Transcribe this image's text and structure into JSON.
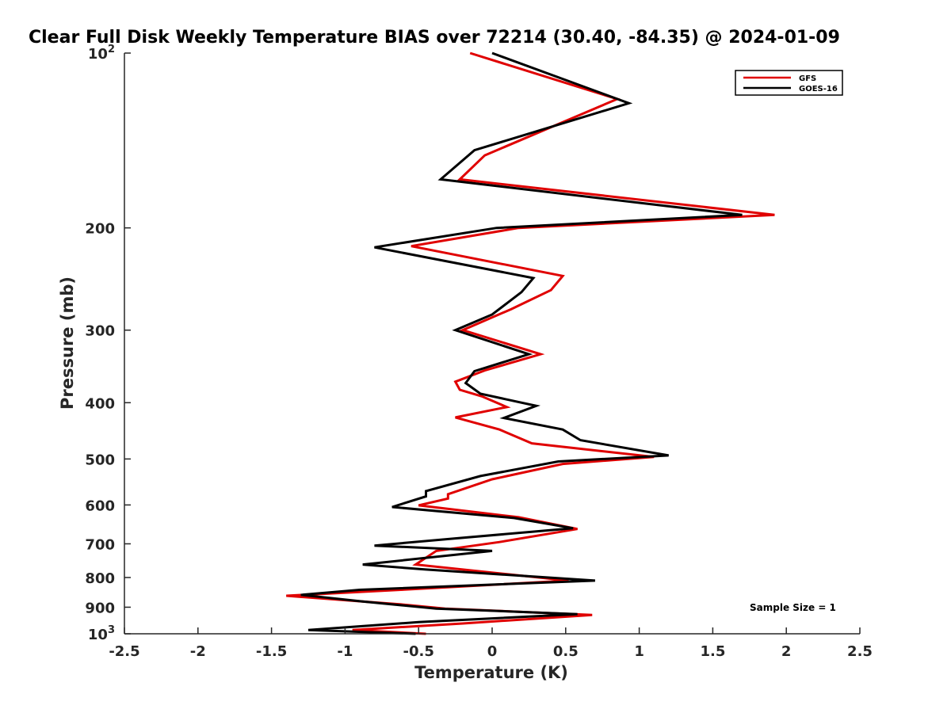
{
  "chart_data": {
    "type": "line",
    "title": "Clear Full Disk Weekly Temperature BIAS over 72214 (30.40, -84.35) @ 2024-01-09",
    "xlabel": "Temperature (K)",
    "ylabel": "Pressure (mb)",
    "xlim": [
      -2.5,
      2.5
    ],
    "ylim": [
      100,
      1000
    ],
    "y_scale": "log",
    "y_reversed": true,
    "x_ticks": [
      "-2.5",
      "-2",
      "-1.5",
      "-1",
      "-0.5",
      "0",
      "0.5",
      "1",
      "1.5",
      "2",
      "2.5"
    ],
    "x_tick_values": [
      -2.5,
      -2,
      -1.5,
      -1,
      -0.5,
      0,
      0.5,
      1,
      1.5,
      2,
      2.5
    ],
    "y_ticks": [
      {
        "value": 100,
        "base": "10",
        "exp": "2"
      },
      {
        "value": 200,
        "label": "200"
      },
      {
        "value": 300,
        "label": "300"
      },
      {
        "value": 400,
        "label": "400"
      },
      {
        "value": 500,
        "label": "500"
      },
      {
        "value": 600,
        "label": "600"
      },
      {
        "value": 700,
        "label": "700"
      },
      {
        "value": 800,
        "label": "800"
      },
      {
        "value": 900,
        "label": "900"
      },
      {
        "value": 1000,
        "base": "10",
        "exp": "3"
      }
    ],
    "legend_position": "top-right",
    "annotation": "Sample Size = 1",
    "grid": false,
    "series": [
      {
        "name": "GFS",
        "color": "#e00000",
        "points": [
          [
            -0.15,
            100
          ],
          [
            0.85,
            120
          ],
          [
            -0.05,
            150
          ],
          [
            -0.22,
            165
          ],
          [
            1.92,
            190
          ],
          [
            0.18,
            200
          ],
          [
            -0.55,
            215
          ],
          [
            0.48,
            242
          ],
          [
            0.4,
            256
          ],
          [
            0.13,
            276
          ],
          [
            -0.2,
            300
          ],
          [
            0.33,
            330
          ],
          [
            -0.05,
            352
          ],
          [
            -0.25,
            368
          ],
          [
            -0.22,
            380
          ],
          [
            -0.07,
            390
          ],
          [
            0.1,
            407
          ],
          [
            -0.25,
            424
          ],
          [
            0.05,
            445
          ],
          [
            0.27,
            470
          ],
          [
            1.1,
            496
          ],
          [
            0.48,
            510
          ],
          [
            0.0,
            542
          ],
          [
            -0.3,
            575
          ],
          [
            -0.3,
            585
          ],
          [
            -0.5,
            601
          ],
          [
            0.18,
            630
          ],
          [
            0.58,
            660
          ],
          [
            0.05,
            695
          ],
          [
            -0.38,
            720
          ],
          [
            -0.52,
            760
          ],
          [
            0.52,
            810
          ],
          [
            -0.62,
            840
          ],
          [
            -1.4,
            860
          ],
          [
            -0.62,
            890
          ],
          [
            -0.32,
            905
          ],
          [
            0.68,
            928
          ],
          [
            -0.2,
            960
          ],
          [
            -0.95,
            985
          ],
          [
            -0.45,
            1000
          ]
        ]
      },
      {
        "name": "GOES-16",
        "color": "#000000",
        "points": [
          [
            0.0,
            100
          ],
          [
            0.93,
            122
          ],
          [
            -0.12,
            147
          ],
          [
            -0.35,
            165
          ],
          [
            1.7,
            190
          ],
          [
            0.03,
            200
          ],
          [
            -0.8,
            216
          ],
          [
            0.28,
            244
          ],
          [
            0.2,
            258
          ],
          [
            0.0,
            282
          ],
          [
            -0.25,
            300
          ],
          [
            0.25,
            330
          ],
          [
            -0.12,
            353
          ],
          [
            -0.18,
            370
          ],
          [
            -0.08,
            386
          ],
          [
            0.3,
            405
          ],
          [
            0.08,
            425
          ],
          [
            0.48,
            445
          ],
          [
            0.6,
            464
          ],
          [
            1.2,
            493
          ],
          [
            0.45,
            505
          ],
          [
            -0.08,
            535
          ],
          [
            -0.45,
            568
          ],
          [
            -0.45,
            580
          ],
          [
            -0.68,
            605
          ],
          [
            0.15,
            632
          ],
          [
            0.55,
            658
          ],
          [
            -0.25,
            685
          ],
          [
            -0.8,
            705
          ],
          [
            0.0,
            720
          ],
          [
            -0.88,
            760
          ],
          [
            -0.45,
            775
          ],
          [
            0.7,
            810
          ],
          [
            -0.9,
            840
          ],
          [
            -1.3,
            857
          ],
          [
            -0.88,
            880
          ],
          [
            -0.38,
            905
          ],
          [
            0.58,
            925
          ],
          [
            -0.5,
            955
          ],
          [
            -1.25,
            985
          ],
          [
            -0.52,
            1000
          ]
        ]
      }
    ]
  }
}
